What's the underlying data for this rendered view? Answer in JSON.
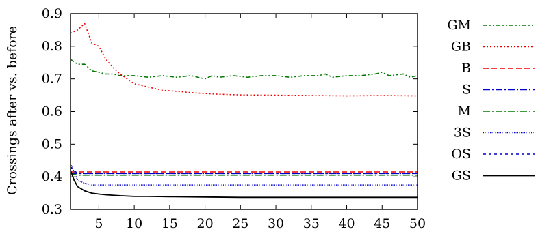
{
  "chart_data": {
    "type": "line",
    "title": "",
    "xlabel": "",
    "ylabel": "Crossings after vs. before",
    "xlim": [
      1,
      50
    ],
    "ylim": [
      0.3,
      0.9
    ],
    "xticks": [
      5,
      10,
      15,
      20,
      25,
      30,
      35,
      40,
      45,
      50
    ],
    "yticks": [
      0.3,
      0.4,
      0.5,
      0.6,
      0.7,
      0.8,
      0.9
    ],
    "ytick_labels": [
      "0.3",
      "0.4",
      "0.5",
      "0.6",
      "0.7",
      "0.8",
      "0.9"
    ],
    "grid": false,
    "legend_position": "right",
    "series": [
      {
        "name": "GM",
        "color": "#007a00",
        "dash": "6,3,2,3,2,3",
        "x": [
          1,
          2,
          3,
          4,
          5,
          6,
          7,
          8,
          9,
          10,
          12,
          14,
          16,
          18,
          20,
          21,
          22,
          24,
          26,
          28,
          30,
          32,
          34,
          36,
          37,
          38,
          40,
          42,
          44,
          45,
          46,
          48,
          49,
          50
        ],
        "y": [
          0.76,
          0.745,
          0.745,
          0.725,
          0.72,
          0.715,
          0.715,
          0.71,
          0.71,
          0.71,
          0.705,
          0.71,
          0.705,
          0.71,
          0.7,
          0.71,
          0.705,
          0.71,
          0.705,
          0.71,
          0.71,
          0.705,
          0.71,
          0.71,
          0.715,
          0.705,
          0.71,
          0.71,
          0.715,
          0.72,
          0.71,
          0.715,
          0.705,
          0.71
        ]
      },
      {
        "name": "GB",
        "color": "#ee0000",
        "dash": "2,3",
        "x": [
          1,
          2,
          3,
          4,
          5,
          6,
          7,
          8,
          9,
          10,
          12,
          14,
          16,
          18,
          20,
          22,
          25,
          30,
          35,
          40,
          45,
          50
        ],
        "y": [
          0.84,
          0.85,
          0.87,
          0.81,
          0.8,
          0.76,
          0.735,
          0.715,
          0.7,
          0.685,
          0.675,
          0.665,
          0.662,
          0.658,
          0.655,
          0.653,
          0.651,
          0.65,
          0.649,
          0.648,
          0.649,
          0.648
        ]
      },
      {
        "name": "B",
        "color": "#ee0000",
        "dash": "8,4",
        "x": [
          1,
          2,
          5,
          10,
          15,
          20,
          25,
          30,
          35,
          40,
          45,
          50
        ],
        "y": [
          0.415,
          0.415,
          0.415,
          0.415,
          0.415,
          0.415,
          0.415,
          0.415,
          0.415,
          0.415,
          0.415,
          0.415
        ]
      },
      {
        "name": "S",
        "color": "#0000cc",
        "dash": "10,3,2,3",
        "x": [
          1,
          2,
          5,
          10,
          15,
          20,
          25,
          30,
          35,
          40,
          45,
          50
        ],
        "y": [
          0.41,
          0.41,
          0.41,
          0.41,
          0.41,
          0.41,
          0.41,
          0.41,
          0.41,
          0.41,
          0.41,
          0.41
        ]
      },
      {
        "name": "M",
        "color": "#007a00",
        "dash": "10,3,2,3",
        "x": [
          1,
          2,
          5,
          10,
          15,
          20,
          25,
          30,
          35,
          40,
          45,
          50
        ],
        "y": [
          0.41,
          0.405,
          0.405,
          0.405,
          0.405,
          0.405,
          0.405,
          0.405,
          0.405,
          0.405,
          0.405,
          0.405
        ]
      },
      {
        "name": "3S",
        "color": "#0000cc",
        "dash": "1,1.5",
        "x": [
          1,
          2,
          3,
          4,
          5,
          7,
          10,
          15,
          20,
          25,
          30,
          35,
          40,
          45,
          50
        ],
        "y": [
          0.44,
          0.39,
          0.38,
          0.375,
          0.375,
          0.375,
          0.375,
          0.375,
          0.375,
          0.375,
          0.375,
          0.375,
          0.375,
          0.375,
          0.375
        ]
      },
      {
        "name": "OS",
        "color": "#0000cc",
        "dash": "4,4",
        "x": [
          1,
          2,
          3,
          5,
          10,
          20,
          30,
          40,
          50
        ],
        "y": [
          0.43,
          0.41,
          0.41,
          0.41,
          0.41,
          0.41,
          0.41,
          0.41,
          0.41
        ]
      },
      {
        "name": "GS",
        "color": "#000000",
        "dash": "",
        "x": [
          1,
          1.5,
          2,
          3,
          4,
          5,
          6,
          8,
          10,
          12,
          15,
          20,
          25,
          30,
          35,
          40,
          45,
          50
        ],
        "y": [
          0.42,
          0.39,
          0.37,
          0.357,
          0.35,
          0.347,
          0.345,
          0.342,
          0.34,
          0.34,
          0.339,
          0.338,
          0.337,
          0.337,
          0.337,
          0.337,
          0.337,
          0.337
        ]
      }
    ]
  }
}
